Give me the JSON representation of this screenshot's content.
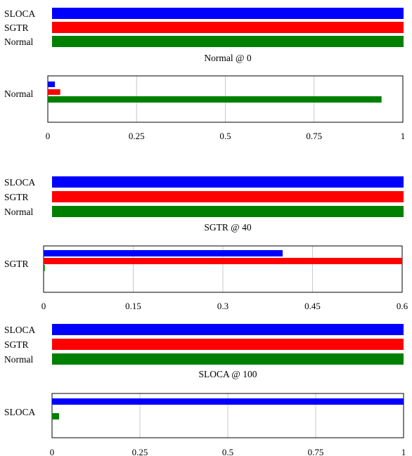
{
  "chart_data": [
    {
      "type": "bar",
      "orientation": "horizontal",
      "categories": [
        "SLOCA",
        "SGTR",
        "Normal"
      ],
      "values": [
        1,
        1,
        1
      ],
      "colors": [
        "#0000ff",
        "#ff0000",
        "#008000"
      ],
      "title": "Normal @ 0"
    },
    {
      "type": "bar",
      "orientation": "horizontal",
      "category": "Normal",
      "series": [
        {
          "color": "#0000ff",
          "value": 0.02
        },
        {
          "color": "#ff0000",
          "value": 0.035
        },
        {
          "color": "#008000",
          "value": 0.94
        }
      ],
      "xlim": [
        0,
        1
      ],
      "xticks": [
        0,
        0.25,
        0.5,
        0.75,
        1
      ],
      "xtick_labels": [
        "0",
        "0.25",
        "0.5",
        "0.75",
        "1"
      ],
      "grid": true
    },
    {
      "type": "bar",
      "orientation": "horizontal",
      "categories": [
        "SLOCA",
        "SGTR",
        "Normal"
      ],
      "values": [
        1,
        1,
        1
      ],
      "colors": [
        "#0000ff",
        "#ff0000",
        "#008000"
      ],
      "title": "SGTR @ 40"
    },
    {
      "type": "bar",
      "orientation": "horizontal",
      "category": "SGTR",
      "series": [
        {
          "color": "#0000ff",
          "value": 0.4
        },
        {
          "color": "#ff0000",
          "value": 0.6
        },
        {
          "color": "#008000",
          "value": 0.002
        }
      ],
      "xlim": [
        0,
        0.6
      ],
      "xticks": [
        0,
        0.15,
        0.3,
        0.45,
        0.6
      ],
      "xtick_labels": [
        "0",
        "0.15",
        "0.3",
        "0.45",
        "0.6"
      ],
      "grid": true
    },
    {
      "type": "bar",
      "orientation": "horizontal",
      "categories": [
        "SLOCA",
        "SGTR",
        "Normal"
      ],
      "values": [
        1,
        1,
        1
      ],
      "colors": [
        "#0000ff",
        "#ff0000",
        "#008000"
      ],
      "title": "SLOCA @ 100"
    },
    {
      "type": "bar",
      "orientation": "horizontal",
      "category": "SLOCA",
      "series": [
        {
          "color": "#0000ff",
          "value": 1.0
        },
        {
          "color": "#008000",
          "value": 0.02
        }
      ],
      "xlim": [
        0,
        1
      ],
      "xticks": [
        0,
        0.25,
        0.5,
        0.75,
        1
      ],
      "xtick_labels": [
        "0",
        "0.25",
        "0.5",
        "0.75",
        "1"
      ],
      "grid": true
    }
  ]
}
